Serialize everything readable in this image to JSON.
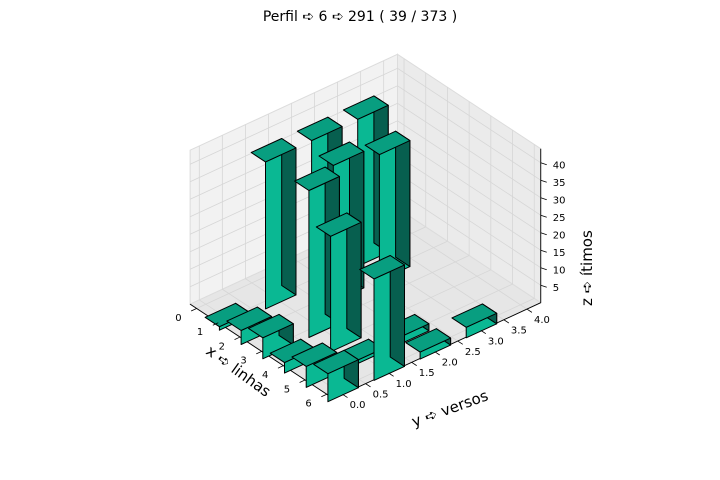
{
  "chart_data": {
    "type": "bar3d",
    "title": "Perfil ➪ 6 ➪ 291 ( 39 / 373 )",
    "xlabel": "x ➪ linhas",
    "ylabel": "y ➪ versos",
    "zlabel": "z ➪ ítimos",
    "x_ticks": [
      "0",
      "1",
      "2",
      "3",
      "4",
      "5",
      "6"
    ],
    "y_ticks": [
      "0.0",
      "0.5",
      "1.0",
      "1.5",
      "2.0",
      "2.5",
      "3.0",
      "3.5",
      "4.0"
    ],
    "z_ticks": [
      "5",
      "10",
      "15",
      "20",
      "25",
      "30",
      "35",
      "40"
    ],
    "xlim": [
      0,
      6
    ],
    "ylim": [
      0,
      4
    ],
    "zlim": [
      0,
      42
    ],
    "bar_color": "#10b896",
    "bars": [
      {
        "x": 1,
        "y": 0,
        "z": 1
      },
      {
        "x": 1,
        "y": 1,
        "z": 42
      },
      {
        "x": 1,
        "y": 2,
        "z": 42
      },
      {
        "x": 1,
        "y": 3,
        "z": 42
      },
      {
        "x": 2,
        "y": 0,
        "z": 4
      },
      {
        "x": 2,
        "y": 2,
        "z": 39
      },
      {
        "x": 2,
        "y": 3,
        "z": 36
      },
      {
        "x": 3,
        "y": 0,
        "z": 6
      },
      {
        "x": 3,
        "y": 1,
        "z": 42
      },
      {
        "x": 4,
        "y": 0,
        "z": 3
      },
      {
        "x": 4,
        "y": 1,
        "z": 33
      },
      {
        "x": 5,
        "y": 0,
        "z": 6
      },
      {
        "x": 5,
        "y": 1,
        "z": 1
      },
      {
        "x": 5,
        "y": 2,
        "z": 2
      },
      {
        "x": 6,
        "y": 0,
        "z": 8
      },
      {
        "x": 6,
        "y": 1,
        "z": 29
      },
      {
        "x": 6,
        "y": 2,
        "z": 2
      },
      {
        "x": 6,
        "y": 3,
        "z": 3
      }
    ]
  }
}
